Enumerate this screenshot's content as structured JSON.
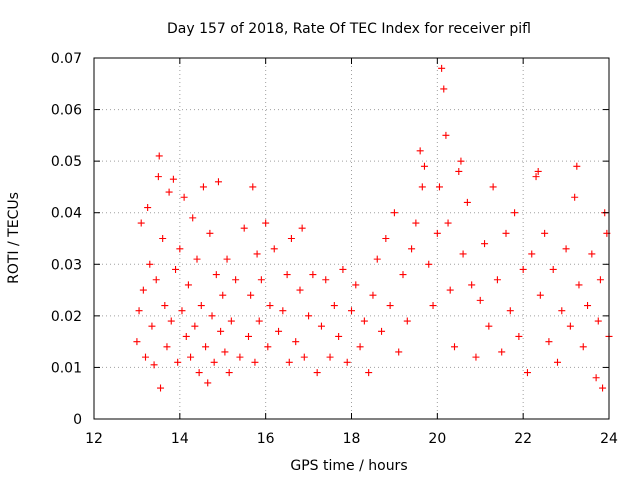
{
  "chart_data": {
    "type": "scatter",
    "title": "Day 157 of 2018, Rate Of TEC Index for receiver pifl",
    "xlabel": "GPS time / hours",
    "ylabel": "ROTI / TECUs",
    "xlim": [
      12,
      24
    ],
    "ylim": [
      0,
      0.07
    ],
    "xticks": [
      "12",
      "14",
      "16",
      "18",
      "20",
      "22",
      "24"
    ],
    "yticks": [
      "0",
      "0.01",
      "0.02",
      "0.03",
      "0.04",
      "0.05",
      "0.06",
      "0.07"
    ],
    "grid": true,
    "marker": "+",
    "color": "#ff0000",
    "series": [
      {
        "name": "ROTI",
        "points": [
          [
            13.0,
            0.015
          ],
          [
            13.05,
            0.021
          ],
          [
            13.1,
            0.038
          ],
          [
            13.15,
            0.025
          ],
          [
            13.2,
            0.012
          ],
          [
            13.25,
            0.041
          ],
          [
            13.3,
            0.03
          ],
          [
            13.35,
            0.018
          ],
          [
            13.4,
            0.0105
          ],
          [
            13.45,
            0.027
          ],
          [
            13.5,
            0.047
          ],
          [
            13.52,
            0.051
          ],
          [
            13.55,
            0.006
          ],
          [
            13.6,
            0.035
          ],
          [
            13.65,
            0.022
          ],
          [
            13.7,
            0.014
          ],
          [
            13.75,
            0.044
          ],
          [
            13.8,
            0.019
          ],
          [
            13.85,
            0.0465
          ],
          [
            13.9,
            0.029
          ],
          [
            13.95,
            0.011
          ],
          [
            14.0,
            0.033
          ],
          [
            14.05,
            0.021
          ],
          [
            14.1,
            0.043
          ],
          [
            14.15,
            0.016
          ],
          [
            14.2,
            0.026
          ],
          [
            14.25,
            0.012
          ],
          [
            14.3,
            0.039
          ],
          [
            14.35,
            0.018
          ],
          [
            14.4,
            0.031
          ],
          [
            14.45,
            0.009
          ],
          [
            14.5,
            0.022
          ],
          [
            14.55,
            0.045
          ],
          [
            14.6,
            0.014
          ],
          [
            14.65,
            0.007
          ],
          [
            14.7,
            0.036
          ],
          [
            14.75,
            0.02
          ],
          [
            14.8,
            0.011
          ],
          [
            14.85,
            0.028
          ],
          [
            14.9,
            0.046
          ],
          [
            14.95,
            0.017
          ],
          [
            15.0,
            0.024
          ],
          [
            15.05,
            0.013
          ],
          [
            15.1,
            0.031
          ],
          [
            15.15,
            0.009
          ],
          [
            15.2,
            0.019
          ],
          [
            15.3,
            0.027
          ],
          [
            15.4,
            0.012
          ],
          [
            15.5,
            0.037
          ],
          [
            15.6,
            0.016
          ],
          [
            15.65,
            0.024
          ],
          [
            15.7,
            0.045
          ],
          [
            15.75,
            0.011
          ],
          [
            15.8,
            0.032
          ],
          [
            15.85,
            0.019
          ],
          [
            15.9,
            0.027
          ],
          [
            16.0,
            0.038
          ],
          [
            16.05,
            0.014
          ],
          [
            16.1,
            0.022
          ],
          [
            16.2,
            0.033
          ],
          [
            16.3,
            0.017
          ],
          [
            16.4,
            0.021
          ],
          [
            16.5,
            0.028
          ],
          [
            16.55,
            0.011
          ],
          [
            16.6,
            0.035
          ],
          [
            16.7,
            0.015
          ],
          [
            16.8,
            0.025
          ],
          [
            16.85,
            0.037
          ],
          [
            16.9,
            0.012
          ],
          [
            17.0,
            0.02
          ],
          [
            17.1,
            0.028
          ],
          [
            17.2,
            0.009
          ],
          [
            17.3,
            0.018
          ],
          [
            17.4,
            0.027
          ],
          [
            17.5,
            0.012
          ],
          [
            17.6,
            0.022
          ],
          [
            17.7,
            0.016
          ],
          [
            17.8,
            0.029
          ],
          [
            17.9,
            0.011
          ],
          [
            18.0,
            0.021
          ],
          [
            18.1,
            0.026
          ],
          [
            18.2,
            0.014
          ],
          [
            18.3,
            0.019
          ],
          [
            18.4,
            0.009
          ],
          [
            18.5,
            0.024
          ],
          [
            18.6,
            0.031
          ],
          [
            18.7,
            0.017
          ],
          [
            18.8,
            0.035
          ],
          [
            18.9,
            0.022
          ],
          [
            19.0,
            0.04
          ],
          [
            19.1,
            0.013
          ],
          [
            19.2,
            0.028
          ],
          [
            19.3,
            0.019
          ],
          [
            19.4,
            0.033
          ],
          [
            19.5,
            0.038
          ],
          [
            19.6,
            0.052
          ],
          [
            19.65,
            0.045
          ],
          [
            19.7,
            0.049
          ],
          [
            19.8,
            0.03
          ],
          [
            19.9,
            0.022
          ],
          [
            20.0,
            0.036
          ],
          [
            20.05,
            0.045
          ],
          [
            20.1,
            0.068
          ],
          [
            20.15,
            0.064
          ],
          [
            20.2,
            0.055
          ],
          [
            20.25,
            0.038
          ],
          [
            20.3,
            0.025
          ],
          [
            20.4,
            0.014
          ],
          [
            20.5,
            0.048
          ],
          [
            20.55,
            0.05
          ],
          [
            20.6,
            0.032
          ],
          [
            20.7,
            0.042
          ],
          [
            20.8,
            0.026
          ],
          [
            20.9,
            0.012
          ],
          [
            21.0,
            0.023
          ],
          [
            21.1,
            0.034
          ],
          [
            21.2,
            0.018
          ],
          [
            21.3,
            0.045
          ],
          [
            21.4,
            0.027
          ],
          [
            21.5,
            0.013
          ],
          [
            21.6,
            0.036
          ],
          [
            21.7,
            0.021
          ],
          [
            21.8,
            0.04
          ],
          [
            21.9,
            0.016
          ],
          [
            22.0,
            0.029
          ],
          [
            22.1,
            0.009
          ],
          [
            22.2,
            0.032
          ],
          [
            22.3,
            0.047
          ],
          [
            22.35,
            0.048
          ],
          [
            22.4,
            0.024
          ],
          [
            22.5,
            0.036
          ],
          [
            22.6,
            0.015
          ],
          [
            22.7,
            0.029
          ],
          [
            22.8,
            0.011
          ],
          [
            22.9,
            0.021
          ],
          [
            23.0,
            0.033
          ],
          [
            23.1,
            0.018
          ],
          [
            23.2,
            0.043
          ],
          [
            23.25,
            0.049
          ],
          [
            23.3,
            0.026
          ],
          [
            23.4,
            0.014
          ],
          [
            23.5,
            0.022
          ],
          [
            23.6,
            0.032
          ],
          [
            23.7,
            0.008
          ],
          [
            23.75,
            0.019
          ],
          [
            23.8,
            0.027
          ],
          [
            23.85,
            0.006
          ],
          [
            23.9,
            0.04
          ],
          [
            23.95,
            0.036
          ],
          [
            24.0,
            0.016
          ]
        ]
      }
    ]
  }
}
